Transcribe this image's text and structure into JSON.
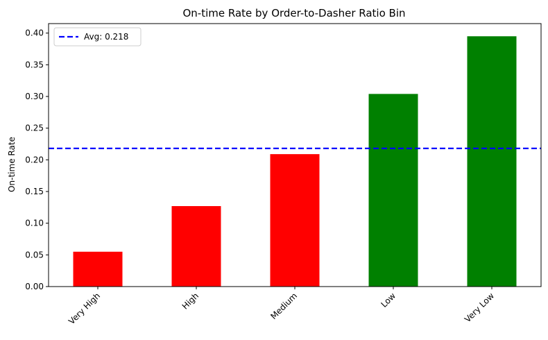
{
  "chart_data": {
    "type": "bar",
    "title": "On-time Rate by Order-to-Dasher Ratio Bin",
    "xlabel": "",
    "ylabel": "On-time Rate",
    "categories": [
      "Very High",
      "High",
      "Medium",
      "Low",
      "Very Low"
    ],
    "values": [
      0.055,
      0.127,
      0.209,
      0.304,
      0.395
    ],
    "bar_colors": [
      "#ff0000",
      "#ff0000",
      "#ff0000",
      "#008000",
      "#008000"
    ],
    "ylim": [
      0,
      0.415
    ],
    "yticks": [
      "0.00",
      "0.05",
      "0.10",
      "0.15",
      "0.20",
      "0.25",
      "0.30",
      "0.35",
      "0.40"
    ],
    "ytick_values": [
      0,
      0.05,
      0.1,
      0.15,
      0.2,
      0.25,
      0.3,
      0.35,
      0.4
    ],
    "average_line": {
      "value": 0.218,
      "color": "#0000ff",
      "style": "dashed"
    },
    "legend": {
      "entries": [
        "Avg: 0.218"
      ],
      "placement": "top-left"
    },
    "grid": false
  }
}
